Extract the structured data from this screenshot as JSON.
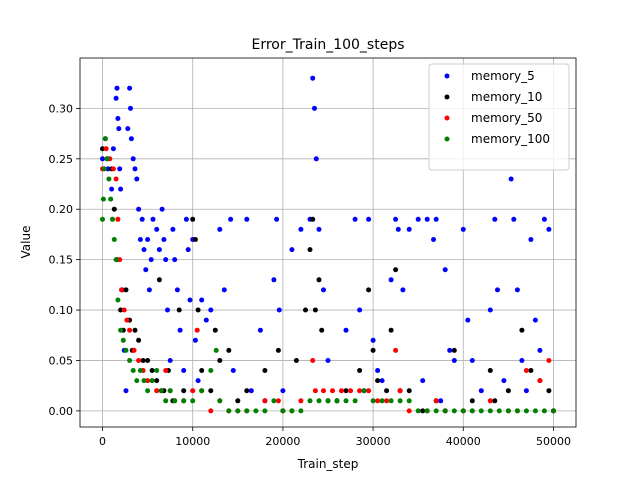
{
  "chart_data": {
    "type": "scatter",
    "title": "Error_Train_100_steps",
    "xlabel": "Train_step",
    "ylabel": "Value",
    "xlim": [
      -2500,
      52500
    ],
    "ylim": [
      -0.016,
      0.35
    ],
    "xticks": [
      0,
      10000,
      20000,
      30000,
      40000,
      50000
    ],
    "xtick_labels": [
      "0",
      "10000",
      "20000",
      "30000",
      "40000",
      "50000"
    ],
    "yticks": [
      0.0,
      0.05,
      0.1,
      0.15,
      0.2,
      0.25,
      0.3
    ],
    "ytick_labels": [
      "0.00",
      "0.05",
      "0.10",
      "0.15",
      "0.20",
      "0.25",
      "0.30"
    ],
    "grid": true,
    "legend_position": "top-right",
    "series": [
      {
        "name": "memory_5",
        "color": "#0000ff",
        "points": [
          [
            0,
            0.25
          ],
          [
            300,
            0.27
          ],
          [
            600,
            0.24
          ],
          [
            1000,
            0.22
          ],
          [
            1200,
            0.26
          ],
          [
            1500,
            0.31
          ],
          [
            1600,
            0.32
          ],
          [
            1700,
            0.29
          ],
          [
            1800,
            0.28
          ],
          [
            1900,
            0.24
          ],
          [
            2000,
            0.22
          ],
          [
            2200,
            0.12
          ],
          [
            2400,
            0.06
          ],
          [
            2600,
            0.02
          ],
          [
            2800,
            0.28
          ],
          [
            3000,
            0.32
          ],
          [
            3100,
            0.3
          ],
          [
            3200,
            0.27
          ],
          [
            3400,
            0.25
          ],
          [
            3600,
            0.24
          ],
          [
            3800,
            0.23
          ],
          [
            4000,
            0.2
          ],
          [
            4200,
            0.17
          ],
          [
            4400,
            0.19
          ],
          [
            4600,
            0.16
          ],
          [
            4800,
            0.14
          ],
          [
            5000,
            0.17
          ],
          [
            5200,
            0.12
          ],
          [
            5400,
            0.15
          ],
          [
            5600,
            0.19
          ],
          [
            6000,
            0.18
          ],
          [
            6300,
            0.16
          ],
          [
            6600,
            0.2
          ],
          [
            6800,
            0.17
          ],
          [
            7000,
            0.15
          ],
          [
            7200,
            0.1
          ],
          [
            7500,
            0.05
          ],
          [
            7800,
            0.18
          ],
          [
            8000,
            0.15
          ],
          [
            8300,
            0.12
          ],
          [
            8600,
            0.08
          ],
          [
            9000,
            0.04
          ],
          [
            9300,
            0.19
          ],
          [
            9500,
            0.16
          ],
          [
            9700,
            0.11
          ],
          [
            10000,
            0.17
          ],
          [
            10300,
            0.07
          ],
          [
            10600,
            0.03
          ],
          [
            11000,
            0.11
          ],
          [
            11500,
            0.09
          ],
          [
            12000,
            0.1
          ],
          [
            13000,
            0.18
          ],
          [
            13500,
            0.12
          ],
          [
            14200,
            0.19
          ],
          [
            14500,
            0.04
          ],
          [
            16000,
            0.19
          ],
          [
            16500,
            0.02
          ],
          [
            17500,
            0.08
          ],
          [
            18000,
            0.01
          ],
          [
            19000,
            0.13
          ],
          [
            19300,
            0.19
          ],
          [
            19600,
            0.1
          ],
          [
            20000,
            0.02
          ],
          [
            21000,
            0.16
          ],
          [
            22000,
            0.18
          ],
          [
            23000,
            0.19
          ],
          [
            23300,
            0.33
          ],
          [
            23500,
            0.3
          ],
          [
            23700,
            0.25
          ],
          [
            24000,
            0.18
          ],
          [
            24500,
            0.12
          ],
          [
            25000,
            0.05
          ],
          [
            26000,
            0.01
          ],
          [
            27000,
            0.08
          ],
          [
            28000,
            0.19
          ],
          [
            28500,
            0.1
          ],
          [
            29000,
            0.02
          ],
          [
            29500,
            0.19
          ],
          [
            30000,
            0.07
          ],
          [
            30500,
            0.04
          ],
          [
            31000,
            0.03
          ],
          [
            32000,
            0.13
          ],
          [
            32500,
            0.19
          ],
          [
            32800,
            0.18
          ],
          [
            33300,
            0.12
          ],
          [
            34000,
            0.18
          ],
          [
            35000,
            0.19
          ],
          [
            35500,
            0.03
          ],
          [
            36000,
            0.19
          ],
          [
            36700,
            0.17
          ],
          [
            37000,
            0.19
          ],
          [
            37500,
            0.01
          ],
          [
            38000,
            0.14
          ],
          [
            38500,
            0.06
          ],
          [
            39000,
            0.05
          ],
          [
            40000,
            0.18
          ],
          [
            40500,
            0.09
          ],
          [
            41000,
            0.05
          ],
          [
            42000,
            0.02
          ],
          [
            43000,
            0.1
          ],
          [
            43500,
            0.19
          ],
          [
            43800,
            0.12
          ],
          [
            44500,
            0.03
          ],
          [
            45300,
            0.23
          ],
          [
            45600,
            0.19
          ],
          [
            46000,
            0.12
          ],
          [
            46500,
            0.05
          ],
          [
            47000,
            0.02
          ],
          [
            47500,
            0.17
          ],
          [
            48000,
            0.09
          ],
          [
            48500,
            0.06
          ],
          [
            49000,
            0.19
          ],
          [
            49500,
            0.18
          ],
          [
            50000,
            0.0
          ]
        ]
      },
      {
        "name": "memory_10",
        "color": "#000000",
        "points": [
          [
            0,
            0.26
          ],
          [
            500,
            0.25
          ],
          [
            1000,
            0.24
          ],
          [
            1300,
            0.2
          ],
          [
            1600,
            0.15
          ],
          [
            2000,
            0.1
          ],
          [
            2300,
            0.08
          ],
          [
            2600,
            0.12
          ],
          [
            3000,
            0.09
          ],
          [
            3300,
            0.06
          ],
          [
            3600,
            0.08
          ],
          [
            4000,
            0.07
          ],
          [
            4500,
            0.05
          ],
          [
            5000,
            0.05
          ],
          [
            5500,
            0.04
          ],
          [
            6000,
            0.03
          ],
          [
            6300,
            0.13
          ],
          [
            6800,
            0.02
          ],
          [
            7300,
            0.04
          ],
          [
            7800,
            0.01
          ],
          [
            8500,
            0.1
          ],
          [
            9000,
            0.02
          ],
          [
            10000,
            0.19
          ],
          [
            10300,
            0.17
          ],
          [
            10600,
            0.1
          ],
          [
            11000,
            0.04
          ],
          [
            12000,
            0.02
          ],
          [
            12500,
            0.08
          ],
          [
            13000,
            0.05
          ],
          [
            14000,
            0.06
          ],
          [
            15000,
            0.01
          ],
          [
            16000,
            0.02
          ],
          [
            18000,
            0.04
          ],
          [
            19500,
            0.06
          ],
          [
            20000,
            0.0
          ],
          [
            21500,
            0.05
          ],
          [
            22500,
            0.1
          ],
          [
            23000,
            0.16
          ],
          [
            23300,
            0.19
          ],
          [
            23600,
            0.1
          ],
          [
            24000,
            0.13
          ],
          [
            24300,
            0.08
          ],
          [
            25000,
            0.01
          ],
          [
            26000,
            0.01
          ],
          [
            27000,
            0.02
          ],
          [
            28500,
            0.04
          ],
          [
            29500,
            0.12
          ],
          [
            30000,
            0.06
          ],
          [
            30500,
            0.03
          ],
          [
            31500,
            0.02
          ],
          [
            32000,
            0.08
          ],
          [
            32500,
            0.14
          ],
          [
            33000,
            0.02
          ],
          [
            34000,
            0.02
          ],
          [
            35500,
            0.0
          ],
          [
            37000,
            0.01
          ],
          [
            38000,
            0.0
          ],
          [
            39000,
            0.06
          ],
          [
            40000,
            0.0
          ],
          [
            41000,
            0.01
          ],
          [
            43000,
            0.04
          ],
          [
            43500,
            0.01
          ],
          [
            45000,
            0.02
          ],
          [
            46500,
            0.08
          ],
          [
            47500,
            0.04
          ],
          [
            48500,
            0.03
          ],
          [
            49500,
            0.02
          ],
          [
            50000,
            0.0
          ]
        ]
      },
      {
        "name": "memory_50",
        "color": "#ff0000",
        "points": [
          [
            0,
            0.24
          ],
          [
            400,
            0.26
          ],
          [
            800,
            0.25
          ],
          [
            1200,
            0.24
          ],
          [
            1500,
            0.23
          ],
          [
            1700,
            0.19
          ],
          [
            1900,
            0.15
          ],
          [
            2100,
            0.12
          ],
          [
            2400,
            0.1
          ],
          [
            2700,
            0.09
          ],
          [
            3000,
            0.08
          ],
          [
            3500,
            0.06
          ],
          [
            4000,
            0.05
          ],
          [
            4500,
            0.04
          ],
          [
            5000,
            0.03
          ],
          [
            5500,
            0.03
          ],
          [
            6000,
            0.02
          ],
          [
            6500,
            0.02
          ],
          [
            7000,
            0.04
          ],
          [
            7500,
            0.02
          ],
          [
            8000,
            0.01
          ],
          [
            9000,
            0.01
          ],
          [
            10000,
            0.02
          ],
          [
            10500,
            0.08
          ],
          [
            11000,
            0.02
          ],
          [
            12000,
            0.0
          ],
          [
            13000,
            0.01
          ],
          [
            14000,
            0.0
          ],
          [
            15000,
            0.0
          ],
          [
            16000,
            0.0
          ],
          [
            18000,
            0.01
          ],
          [
            19500,
            0.01
          ],
          [
            20000,
            0.0
          ],
          [
            21000,
            0.0
          ],
          [
            22000,
            0.01
          ],
          [
            23300,
            0.05
          ],
          [
            23600,
            0.02
          ],
          [
            24500,
            0.02
          ],
          [
            25500,
            0.02
          ],
          [
            26500,
            0.02
          ],
          [
            27500,
            0.02
          ],
          [
            28500,
            0.02
          ],
          [
            29500,
            0.02
          ],
          [
            30500,
            0.01
          ],
          [
            31500,
            0.01
          ],
          [
            32500,
            0.06
          ],
          [
            33000,
            0.02
          ],
          [
            34000,
            0.0
          ],
          [
            36000,
            0.0
          ],
          [
            37000,
            0.01
          ],
          [
            38000,
            0.0
          ],
          [
            40000,
            0.0
          ],
          [
            41000,
            0.0
          ],
          [
            43000,
            0.01
          ],
          [
            45000,
            0.0
          ],
          [
            46000,
            0.0
          ],
          [
            47000,
            0.04
          ],
          [
            48500,
            0.03
          ],
          [
            49500,
            0.05
          ],
          [
            50000,
            0.0
          ]
        ]
      },
      {
        "name": "memory_100",
        "color": "#008000",
        "points": [
          [
            0,
            0.19
          ],
          [
            100,
            0.21
          ],
          [
            200,
            0.24
          ],
          [
            300,
            0.27
          ],
          [
            500,
            0.25
          ],
          [
            700,
            0.23
          ],
          [
            900,
            0.21
          ],
          [
            1100,
            0.19
          ],
          [
            1300,
            0.17
          ],
          [
            1500,
            0.15
          ],
          [
            1700,
            0.11
          ],
          [
            2000,
            0.08
          ],
          [
            2300,
            0.07
          ],
          [
            2600,
            0.06
          ],
          [
            3000,
            0.05
          ],
          [
            3400,
            0.04
          ],
          [
            3800,
            0.03
          ],
          [
            4200,
            0.04
          ],
          [
            4600,
            0.03
          ],
          [
            5000,
            0.02
          ],
          [
            5500,
            0.03
          ],
          [
            6000,
            0.04
          ],
          [
            6500,
            0.02
          ],
          [
            7000,
            0.01
          ],
          [
            7500,
            0.02
          ],
          [
            8000,
            0.01
          ],
          [
            9000,
            0.01
          ],
          [
            10000,
            0.01
          ],
          [
            11000,
            0.02
          ],
          [
            12000,
            0.04
          ],
          [
            12600,
            0.06
          ],
          [
            13000,
            0.01
          ],
          [
            14000,
            0.0
          ],
          [
            15000,
            0.0
          ],
          [
            16000,
            0.0
          ],
          [
            17000,
            0.0
          ],
          [
            18000,
            0.0
          ],
          [
            19000,
            0.01
          ],
          [
            20000,
            0.0
          ],
          [
            21000,
            0.0
          ],
          [
            22000,
            0.0
          ],
          [
            23000,
            0.01
          ],
          [
            24000,
            0.01
          ],
          [
            25000,
            0.01
          ],
          [
            26000,
            0.01
          ],
          [
            27000,
            0.01
          ],
          [
            28000,
            0.01
          ],
          [
            29000,
            0.02
          ],
          [
            30000,
            0.01
          ],
          [
            31000,
            0.01
          ],
          [
            32000,
            0.01
          ],
          [
            33000,
            0.01
          ],
          [
            34000,
            0.01
          ],
          [
            35000,
            0.0
          ],
          [
            36000,
            0.0
          ],
          [
            37000,
            0.0
          ],
          [
            38000,
            0.0
          ],
          [
            39000,
            0.0
          ],
          [
            40000,
            0.0
          ],
          [
            41000,
            0.0
          ],
          [
            42000,
            0.0
          ],
          [
            43000,
            0.0
          ],
          [
            44000,
            0.0
          ],
          [
            45000,
            0.0
          ],
          [
            46000,
            0.0
          ],
          [
            47000,
            0.0
          ],
          [
            48000,
            0.0
          ],
          [
            49000,
            0.0
          ],
          [
            50000,
            0.0
          ]
        ]
      }
    ]
  }
}
